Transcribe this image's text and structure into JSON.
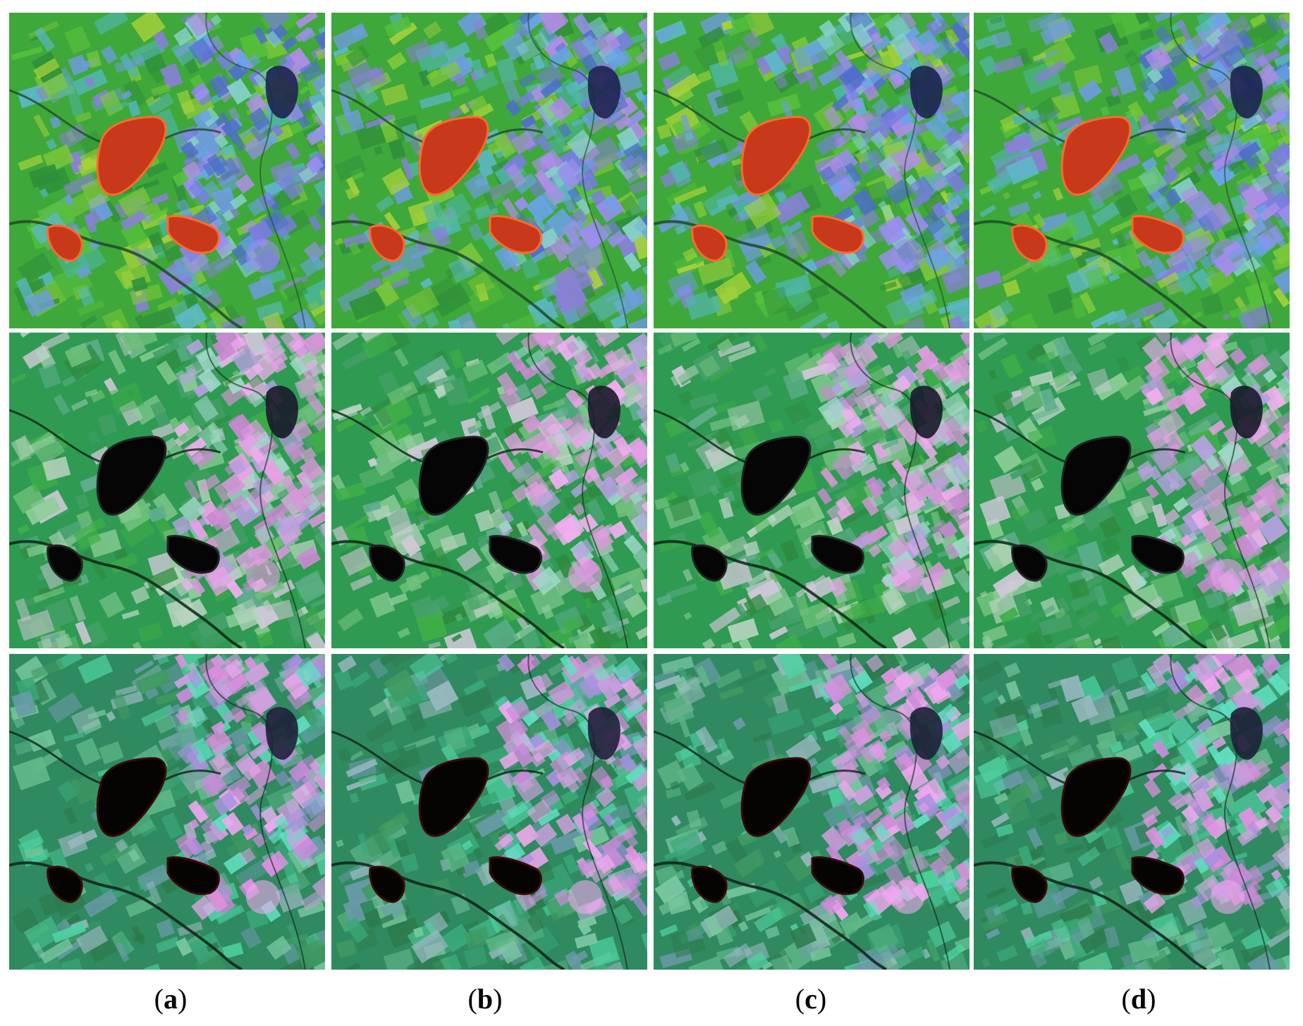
{
  "figure": {
    "rows": [
      {
        "palette": {
          "base": "#3fa83a",
          "land": [
            "#7ec83a",
            "#56c03c",
            "#2f8f3a",
            "#a6d23a",
            "#5db8c8",
            "#6f9be0",
            "#4fb6a8",
            "#8a7fd8"
          ],
          "field": [
            "#7a7ce0",
            "#9a8ef0",
            "#6aa2e8",
            "#b08de6",
            "#4e6fc8",
            "#86d0c8"
          ],
          "lake": "#c8381a",
          "lake_edge": "#ff6a2a",
          "river": "#1f4a2a",
          "dark_lake": "#1d2350"
        }
      },
      {
        "palette": {
          "base": "#2f9a52",
          "land": [
            "#2e8a3e",
            "#3fae48",
            "#6fc07a",
            "#8fcf9a",
            "#b8d4c0",
            "#46a06a",
            "#d0c8d8",
            "#5fae8e"
          ],
          "field": [
            "#d896d8",
            "#e8a0e8",
            "#c88ad0",
            "#b6a0e0",
            "#f0b0f0",
            "#9fd8c8"
          ],
          "lake": "#050505",
          "lake_edge": "#222222",
          "river": "#0d2414",
          "dark_lake": "#1a1a2a"
        }
      },
      {
        "palette": {
          "base": "#2f8a60",
          "land": [
            "#2c7a4c",
            "#3f9a62",
            "#5fb888",
            "#7ac8a0",
            "#4fd0a0",
            "#3aa878",
            "#9ab8c0",
            "#6a9aa8"
          ],
          "field": [
            "#e090e0",
            "#f0a8f0",
            "#c88ad8",
            "#a890e0",
            "#60e0c0",
            "#d0a0e0"
          ],
          "lake": "#060303",
          "lake_edge": "#3a0a0a",
          "river": "#10201a",
          "dark_lake": "#1e2038"
        }
      }
    ],
    "columns": [
      "(a)",
      "(b)",
      "(c)",
      "(d)"
    ],
    "captions": [
      {
        "open": "(",
        "letter": "a",
        "close": ")"
      },
      {
        "open": "(",
        "letter": "b",
        "close": ")"
      },
      {
        "open": "(",
        "letter": "c",
        "close": ")"
      },
      {
        "open": "(",
        "letter": "d",
        "close": ")"
      }
    ]
  }
}
